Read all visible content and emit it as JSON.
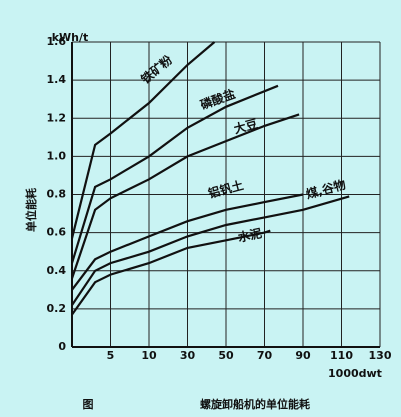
{
  "chart_data": {
    "type": "line",
    "y_label": "kWh/t",
    "x_label": "1000dwt",
    "y_title": "单位能耗",
    "caption_number": "图",
    "caption": "螺旋卸船机的单位能耗",
    "xlim": [
      0,
      130
    ],
    "xticks": [
      5,
      10,
      30,
      50,
      70,
      90,
      110,
      130
    ],
    "ylim": [
      0,
      1.6
    ],
    "yticks": [
      0,
      0.2,
      0.4,
      0.6,
      0.8,
      {
        "value": 1,
        "label": "1.0"
      },
      1.2,
      1.4,
      1.6
    ],
    "grid": true,
    "color": "#111111",
    "series": [
      {
        "name": "铁矿粉",
        "x": [
          0,
          3,
          5,
          10,
          30,
          44
        ],
        "values": [
          0.57,
          1.06,
          1.12,
          1.28,
          1.48,
          1.6
        ]
      },
      {
        "name": "磷酸盐",
        "x": [
          0,
          3,
          5,
          10,
          30,
          50,
          77
        ],
        "values": [
          0.44,
          0.84,
          0.88,
          1.0,
          1.15,
          1.26,
          1.37
        ]
      },
      {
        "name": "大豆",
        "x": [
          0,
          3,
          5,
          10,
          30,
          50,
          70,
          88
        ],
        "values": [
          0.36,
          0.72,
          0.78,
          0.88,
          1.0,
          1.08,
          1.16,
          1.22
        ]
      },
      {
        "name": "铝钒土",
        "x": [
          0,
          3,
          5,
          10,
          30,
          50,
          70,
          90
        ],
        "values": [
          0.3,
          0.46,
          0.5,
          0.58,
          0.66,
          0.72,
          0.76,
          0.8
        ]
      },
      {
        "name": "煤,谷物",
        "x": [
          0,
          3,
          5,
          10,
          30,
          50,
          70,
          90,
          114
        ],
        "values": [
          0.22,
          0.4,
          0.44,
          0.5,
          0.58,
          0.64,
          0.68,
          0.72,
          0.79
        ]
      },
      {
        "name": "水泥",
        "x": [
          0,
          3,
          5,
          10,
          30,
          50,
          70,
          73
        ],
        "values": [
          0.17,
          0.34,
          0.38,
          0.44,
          0.52,
          0.56,
          0.6,
          0.61
        ]
      }
    ]
  }
}
